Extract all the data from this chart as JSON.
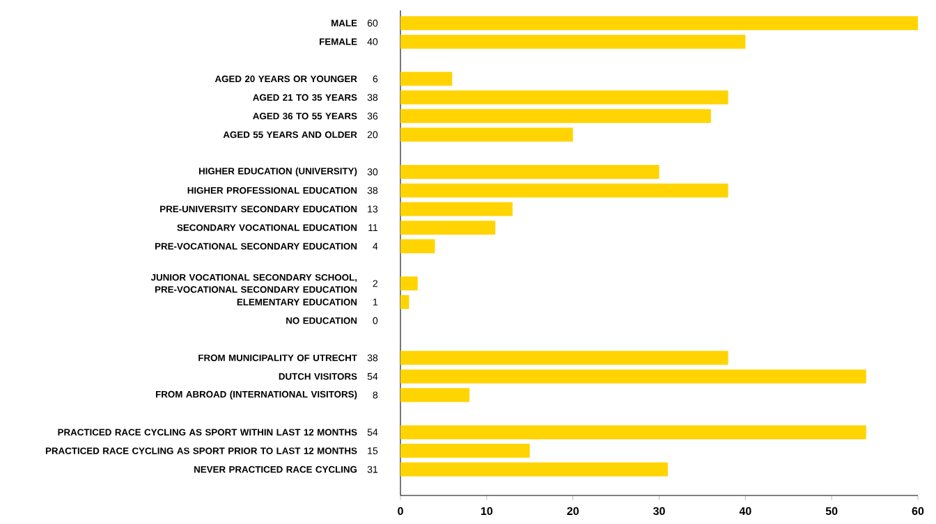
{
  "chart_data": {
    "type": "bar",
    "orientation": "horizontal",
    "categories": [
      "MALE",
      "FEMALE",
      null,
      "AGED 20 YEARS OR YOUNGER",
      "AGED 21 TO 35 YEARS",
      "AGED 36 TO 55 YEARS",
      "AGED 55 YEARS AND OLDER",
      null,
      "HIGHER EDUCATION (UNIVERSITY)",
      "HIGHER PROFESSIONAL EDUCATION",
      "PRE-UNIVERSITY SECONDARY EDUCATION",
      "SECONDARY VOCATIONAL EDUCATION",
      "PRE-VOCATIONAL SECONDARY EDUCATION",
      null,
      "JUNIOR VOCATIONAL SECONDARY SCHOOL, PRE-VOCATIONAL SECONDARY EDUCATION",
      "ELEMENTARY EDUCATION",
      "NO EDUCATION",
      null,
      "FROM MUNICIPALITY OF UTRECHT",
      "DUTCH VISITORS",
      "FROM ABROAD (INTERNATIONAL VISITORS)",
      null,
      "PRACTICED RACE CYCLING AS SPORT WITHIN LAST 12 MONTHS",
      "PRACTICED RACE CYCLING AS SPORT PRIOR TO LAST 12 MONTHS",
      "NEVER PRACTICED RACE CYCLING"
    ],
    "values": [
      60,
      40,
      null,
      6,
      38,
      36,
      20,
      null,
      30,
      38,
      13,
      11,
      4,
      null,
      2,
      1,
      0,
      null,
      38,
      54,
      8,
      null,
      54,
      15,
      31
    ],
    "color": "#ffd400",
    "xlim": [
      0,
      60
    ],
    "xticks": [
      0,
      10,
      20,
      30,
      40,
      50,
      60
    ],
    "data_labels": true
  }
}
